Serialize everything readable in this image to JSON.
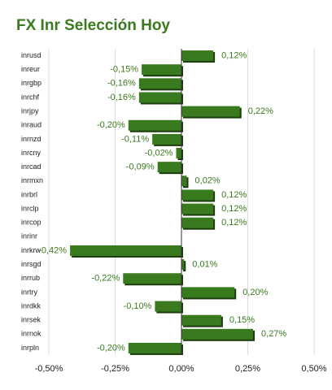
{
  "chart_data": {
    "type": "hbar",
    "title": "FX Inr Selección Hoy",
    "categories": [
      "inrusd",
      "inreur",
      "inrgbp",
      "inrchf",
      "inrjpy",
      "inraud",
      "inrnzd",
      "inrcny",
      "inrcad",
      "inrmxn",
      "inrbrl",
      "inrclp",
      "inrcop",
      "inrinr",
      "inrkrw",
      "inrsgd",
      "inrrub",
      "inrtry",
      "inrdkk",
      "inrsek",
      "inrnok",
      "inrpln"
    ],
    "values": [
      0.12,
      -0.15,
      -0.16,
      -0.16,
      0.22,
      -0.2,
      -0.11,
      -0.02,
      -0.09,
      0.02,
      0.12,
      0.12,
      0.12,
      null,
      -0.42,
      0.01,
      -0.22,
      0.2,
      -0.1,
      0.15,
      0.27,
      -0.2
    ],
    "value_labels": [
      "0,12%",
      "-0,15%",
      "-0,16%",
      "-0,16%",
      "0,22%",
      "-0,20%",
      "-0,11%",
      "-0,02%",
      "-0,09%",
      "0,02%",
      "0,12%",
      "0,12%",
      "0,12%",
      null,
      "-0,42%",
      "0,01%",
      "-0,22%",
      "0,20%",
      "-0,10%",
      "0,15%",
      "0,27%",
      "-0,20%"
    ],
    "color": "#3a7a1f",
    "xlim": [
      -0.5,
      0.5
    ],
    "xticks": [
      {
        "value": -0.5,
        "label": "-0,50%"
      },
      {
        "value": -0.25,
        "label": "-0,25%"
      },
      {
        "value": 0,
        "label": "0,00%"
      },
      {
        "value": 0.25,
        "label": "0,25%"
      },
      {
        "value": 0.5,
        "label": "0,50%"
      }
    ],
    "grid": true
  }
}
